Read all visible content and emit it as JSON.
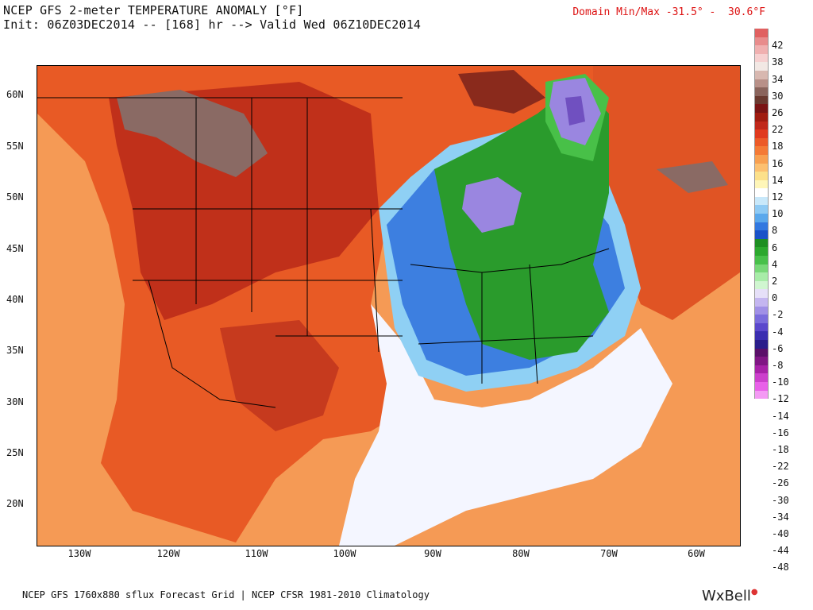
{
  "header": {
    "line1": "NCEP GFS 2-meter TEMPERATURE ANOMALY [°F]",
    "line2": "Init: 06Z03DEC2014 -- [168] hr --> Valid Wed 06Z10DEC2014",
    "domain_minmax": "Domain Min/Max -31.5° -  30.6°F"
  },
  "map": {
    "lat_labels": [
      "60N",
      "55N",
      "50N",
      "45N",
      "40N",
      "35N",
      "30N",
      "25N",
      "20N"
    ],
    "lon_labels": [
      "130W",
      "120W",
      "110W",
      "100W",
      "90W",
      "80W",
      "70W",
      "60W"
    ],
    "region_colors": {
      "warm_base": "#e85a25",
      "ocean_warm": "#f59a55",
      "hot": "#b8240f",
      "very_hot": "#7a1e10",
      "extreme": "#8a6a64",
      "neutral": "#ffffff",
      "cool_light": "#8fd0f4",
      "cool": "#3d7fe0",
      "cold": "#2a9b2c",
      "cold_light": "#48c048",
      "very_cold": "#9a86e0",
      "coldest": "#7050c0"
    }
  },
  "colorbar": {
    "labels": [
      "42",
      "38",
      "34",
      "30",
      "26",
      "22",
      "18",
      "16",
      "14",
      "12",
      "10",
      "8",
      "6",
      "4",
      "2",
      "0",
      "-2",
      "-4",
      "-6",
      "-8",
      "-10",
      "-12",
      "-14",
      "-16",
      "-18",
      "-22",
      "-26",
      "-30",
      "-34",
      "-40",
      "-44",
      "-48"
    ],
    "colors": [
      "#e06060",
      "#e88c8c",
      "#f0b0b0",
      "#f6d0d0",
      "#f2e8e4",
      "#d8b8b0",
      "#b89088",
      "#8a645c",
      "#6a3a30",
      "#7a1414",
      "#a01c10",
      "#c0281a",
      "#e03a1e",
      "#ec5a28",
      "#f47a36",
      "#f8a050",
      "#fcc070",
      "#fce08a",
      "#fff6b8",
      "#ffffff",
      "#c8e8fa",
      "#8ecaf4",
      "#5aa8ec",
      "#3278e0",
      "#1a52c8",
      "#1e8e22",
      "#2ca82e",
      "#48c04a",
      "#78d878",
      "#a8eca8",
      "#d0f6d0",
      "#e6e0f8",
      "#c4b6f0",
      "#a090e6",
      "#7a6cdc",
      "#5a48cc",
      "#3a2eb0",
      "#2a1e8a",
      "#5a1068",
      "#801684",
      "#a822a8",
      "#cc40cc",
      "#e860e8",
      "#f49af4"
    ]
  },
  "footer": {
    "source": "NCEP GFS 1760x880 sflux Forecast Grid | NCEP CFSR 1981-2010 Climatology",
    "brand": "WxBell"
  }
}
